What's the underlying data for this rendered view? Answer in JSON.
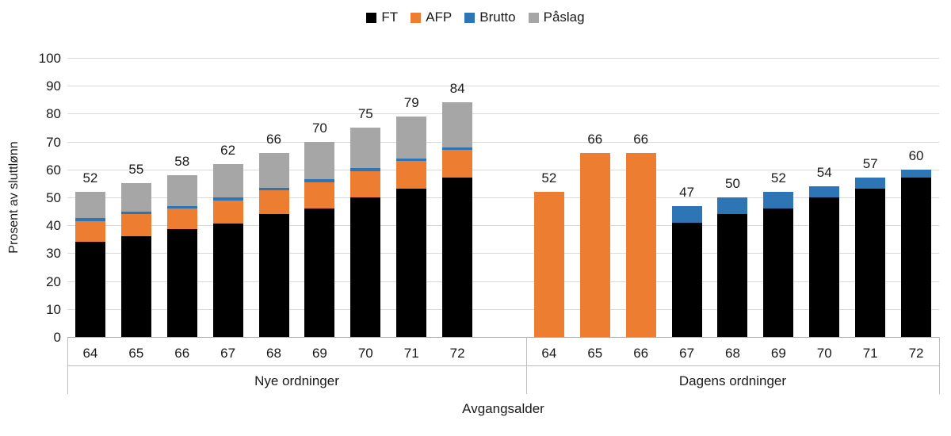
{
  "chart_data": {
    "type": "bar",
    "stacked": true,
    "title": "",
    "ylabel": "Prosent av sluttlønn",
    "xlabel": "Avgangsalder",
    "ylim": [
      0,
      100
    ],
    "ytick_step": 10,
    "grid": true,
    "legend_position": "top",
    "series_order": [
      "FT",
      "AFP",
      "Brutto",
      "Påslag"
    ],
    "series_colors": {
      "FT": "#000000",
      "AFP": "#ED7D31",
      "Brutto": "#2E75B6",
      "Påslag": "#A6A6A6"
    },
    "groups": [
      {
        "label": "Nye ordninger",
        "bars": [
          {
            "category": "64",
            "values": {
              "FT": 34,
              "AFP": 7.5,
              "Brutto": 1,
              "Påslag": 9.5
            },
            "total": 52
          },
          {
            "category": "65",
            "values": {
              "FT": 36,
              "AFP": 8,
              "Brutto": 1,
              "Påslag": 10
            },
            "total": 55
          },
          {
            "category": "66",
            "values": {
              "FT": 38.5,
              "AFP": 7.5,
              "Brutto": 1,
              "Påslag": 11
            },
            "total": 58
          },
          {
            "category": "67",
            "values": {
              "FT": 40.5,
              "AFP": 8.5,
              "Brutto": 1,
              "Påslag": 12
            },
            "total": 62
          },
          {
            "category": "68",
            "values": {
              "FT": 44,
              "AFP": 8.5,
              "Brutto": 1,
              "Påslag": 12.5
            },
            "total": 66
          },
          {
            "category": "69",
            "values": {
              "FT": 46,
              "AFP": 9.5,
              "Brutto": 1,
              "Påslag": 13.5
            },
            "total": 70
          },
          {
            "category": "70",
            "values": {
              "FT": 50,
              "AFP": 9.5,
              "Brutto": 1,
              "Påslag": 14.5
            },
            "total": 75
          },
          {
            "category": "71",
            "values": {
              "FT": 53,
              "AFP": 10,
              "Brutto": 1,
              "Påslag": 15
            },
            "total": 79
          },
          {
            "category": "72",
            "values": {
              "FT": 57,
              "AFP": 10,
              "Brutto": 1,
              "Påslag": 16
            },
            "total": 84
          }
        ]
      },
      {
        "label": "Dagens ordninger",
        "bars": [
          {
            "category": "64",
            "values": {
              "FT": 0,
              "AFP": 52,
              "Brutto": 0,
              "Påslag": 0
            },
            "total": 52
          },
          {
            "category": "65",
            "values": {
              "FT": 0,
              "AFP": 66,
              "Brutto": 0,
              "Påslag": 0
            },
            "total": 66
          },
          {
            "category": "66",
            "values": {
              "FT": 0,
              "AFP": 66,
              "Brutto": 0,
              "Påslag": 0
            },
            "total": 66
          },
          {
            "category": "67",
            "values": {
              "FT": 41,
              "AFP": 0,
              "Brutto": 6,
              "Påslag": 0
            },
            "total": 47
          },
          {
            "category": "68",
            "values": {
              "FT": 44,
              "AFP": 0,
              "Brutto": 6,
              "Påslag": 0
            },
            "total": 50
          },
          {
            "category": "69",
            "values": {
              "FT": 46,
              "AFP": 0,
              "Brutto": 6,
              "Påslag": 0
            },
            "total": 52
          },
          {
            "category": "70",
            "values": {
              "FT": 50,
              "AFP": 0,
              "Brutto": 4,
              "Påslag": 0
            },
            "total": 54
          },
          {
            "category": "71",
            "values": {
              "FT": 53,
              "AFP": 0,
              "Brutto": 4,
              "Påslag": 0
            },
            "total": 57
          },
          {
            "category": "72",
            "values": {
              "FT": 57,
              "AFP": 0,
              "Brutto": 3,
              "Påslag": 0
            },
            "total": 60
          }
        ]
      }
    ]
  }
}
